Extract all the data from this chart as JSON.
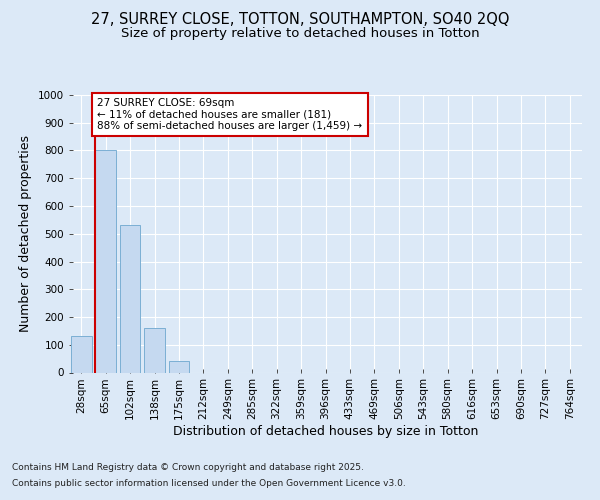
{
  "title_line1": "27, SURREY CLOSE, TOTTON, SOUTHAMPTON, SO40 2QQ",
  "title_line2": "Size of property relative to detached houses in Totton",
  "xlabel": "Distribution of detached houses by size in Totton",
  "ylabel": "Number of detached properties",
  "categories": [
    "28sqm",
    "65sqm",
    "102sqm",
    "138sqm",
    "175sqm",
    "212sqm",
    "249sqm",
    "285sqm",
    "322sqm",
    "359sqm",
    "396sqm",
    "433sqm",
    "469sqm",
    "506sqm",
    "543sqm",
    "580sqm",
    "616sqm",
    "653sqm",
    "690sqm",
    "727sqm",
    "764sqm"
  ],
  "values": [
    130,
    800,
    530,
    160,
    40,
    0,
    0,
    0,
    0,
    0,
    0,
    0,
    0,
    0,
    0,
    0,
    0,
    0,
    0,
    0,
    0
  ],
  "bar_color": "#c5d9f0",
  "bar_edge_color": "#7bafd4",
  "vline_color": "#cc0000",
  "annotation_text": "27 SURREY CLOSE: 69sqm\n← 11% of detached houses are smaller (181)\n88% of semi-detached houses are larger (1,459) →",
  "annotation_box_color": "white",
  "annotation_box_edge": "#cc0000",
  "ylim": [
    0,
    1000
  ],
  "yticks": [
    0,
    100,
    200,
    300,
    400,
    500,
    600,
    700,
    800,
    900,
    1000
  ],
  "background_color": "#dce9f7",
  "grid_color": "#ffffff",
  "footer_line1": "Contains HM Land Registry data © Crown copyright and database right 2025.",
  "footer_line2": "Contains public sector information licensed under the Open Government Licence v3.0.",
  "title_fontsize": 10.5,
  "subtitle_fontsize": 9.5,
  "axis_label_fontsize": 9,
  "tick_fontsize": 7.5,
  "annotation_fontsize": 7.5,
  "footer_fontsize": 6.5
}
